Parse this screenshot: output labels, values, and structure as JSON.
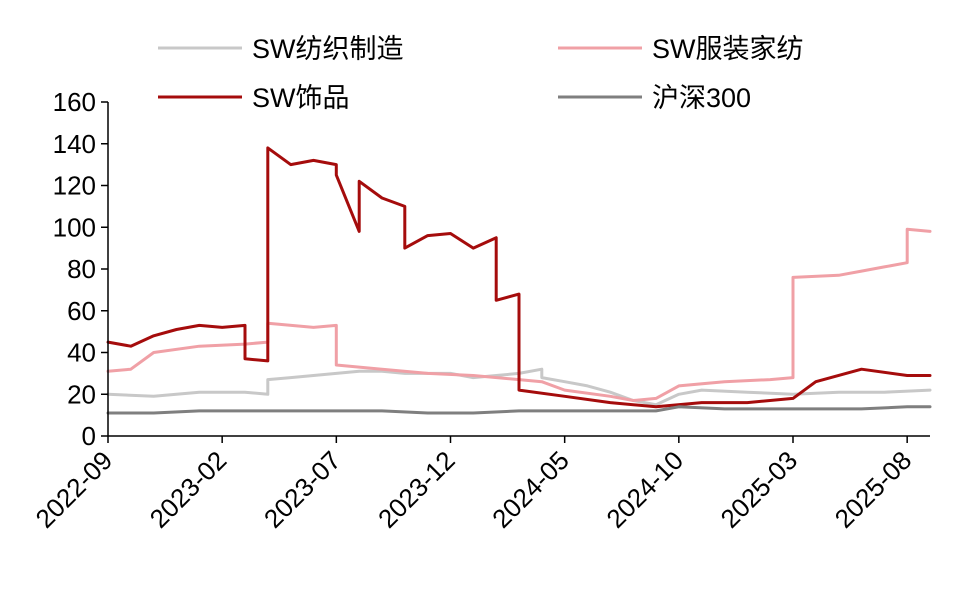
{
  "chart_data": {
    "type": "line",
    "title": "",
    "xlabel": "",
    "ylabel": "",
    "ylim": [
      0,
      160
    ],
    "yticks": [
      0,
      20,
      40,
      60,
      80,
      100,
      120,
      140,
      160
    ],
    "xlim": [
      "2022-09",
      "2025-09"
    ],
    "xticks": [
      "2022-09",
      "2023-02",
      "2023-07",
      "2023-12",
      "2024-05",
      "2024-10",
      "2025-03",
      "2025-08"
    ],
    "grid": false,
    "legend": "top",
    "series": [
      {
        "name": "SW纺织制造",
        "color": "#c8c8c8",
        "points": [
          [
            "2022-09",
            20
          ],
          [
            "2022-11",
            19
          ],
          [
            "2023-01",
            21
          ],
          [
            "2023-03",
            21
          ],
          [
            "2023-04",
            20
          ],
          [
            "2023-04",
            27
          ],
          [
            "2023-05",
            28
          ],
          [
            "2023-06",
            29
          ],
          [
            "2023-07",
            30
          ],
          [
            "2023-08",
            31
          ],
          [
            "2023-09",
            31
          ],
          [
            "2023-10",
            30
          ],
          [
            "2023-12",
            30
          ],
          [
            "2024-01",
            28
          ],
          [
            "2024-02",
            29
          ],
          [
            "2024-03",
            30
          ],
          [
            "2024-04",
            32
          ],
          [
            "2024-04",
            28
          ],
          [
            "2024-05",
            26
          ],
          [
            "2024-06",
            24
          ],
          [
            "2024-07",
            21
          ],
          [
            "2024-08",
            17
          ],
          [
            "2024-09",
            15
          ],
          [
            "2024-10",
            20
          ],
          [
            "2024-11",
            22
          ],
          [
            "2025-01",
            21
          ],
          [
            "2025-03",
            20
          ],
          [
            "2025-05",
            21
          ],
          [
            "2025-07",
            21
          ],
          [
            "2025-09",
            22
          ]
        ]
      },
      {
        "name": "SW服装家纺",
        "color": "#f0a0a6",
        "points": [
          [
            "2022-09",
            31
          ],
          [
            "2022-10",
            32
          ],
          [
            "2022-11",
            40
          ],
          [
            "2023-01",
            43
          ],
          [
            "2023-03",
            44
          ],
          [
            "2023-04",
            45
          ],
          [
            "2023-04",
            54
          ],
          [
            "2023-06",
            52
          ],
          [
            "2023-07",
            53
          ],
          [
            "2023-07",
            34
          ],
          [
            "2023-09",
            32
          ],
          [
            "2023-11",
            30
          ],
          [
            "2024-01",
            29
          ],
          [
            "2024-03",
            27
          ],
          [
            "2024-04",
            26
          ],
          [
            "2024-05",
            22
          ],
          [
            "2024-07",
            19
          ],
          [
            "2024-08",
            17
          ],
          [
            "2024-09",
            18
          ],
          [
            "2024-10",
            24
          ],
          [
            "2024-12",
            26
          ],
          [
            "2025-02",
            27
          ],
          [
            "2025-03",
            28
          ],
          [
            "2025-03",
            76
          ],
          [
            "2025-05",
            77
          ],
          [
            "2025-06",
            79
          ],
          [
            "2025-07",
            81
          ],
          [
            "2025-08",
            83
          ],
          [
            "2025-08",
            99
          ],
          [
            "2025-09",
            98
          ]
        ]
      },
      {
        "name": "SW饰品",
        "color": "#a50c0c",
        "points": [
          [
            "2022-09",
            45
          ],
          [
            "2022-10",
            43
          ],
          [
            "2022-11",
            48
          ],
          [
            "2022-12",
            51
          ],
          [
            "2023-01",
            53
          ],
          [
            "2023-02",
            52
          ],
          [
            "2023-03",
            53
          ],
          [
            "2023-03",
            37
          ],
          [
            "2023-04",
            36
          ],
          [
            "2023-04",
            138
          ],
          [
            "2023-05",
            130
          ],
          [
            "2023-06",
            132
          ],
          [
            "2023-07",
            130
          ],
          [
            "2023-07",
            125
          ],
          [
            "2023-08",
            98
          ],
          [
            "2023-08",
            122
          ],
          [
            "2023-09",
            114
          ],
          [
            "2023-10",
            110
          ],
          [
            "2023-10",
            90
          ],
          [
            "2023-11",
            96
          ],
          [
            "2023-12",
            97
          ],
          [
            "2024-01",
            90
          ],
          [
            "2024-02",
            95
          ],
          [
            "2024-02",
            65
          ],
          [
            "2024-03",
            68
          ],
          [
            "2024-03",
            22
          ],
          [
            "2024-05",
            19
          ],
          [
            "2024-07",
            16
          ],
          [
            "2024-09",
            14
          ],
          [
            "2024-11",
            16
          ],
          [
            "2025-01",
            16
          ],
          [
            "2025-03",
            18
          ],
          [
            "2025-04",
            26
          ],
          [
            "2025-06",
            32
          ],
          [
            "2025-08",
            29
          ],
          [
            "2025-09",
            29
          ]
        ]
      },
      {
        "name": "沪深300",
        "color": "#7f7f7f",
        "points": [
          [
            "2022-09",
            11
          ],
          [
            "2022-11",
            11
          ],
          [
            "2023-01",
            12
          ],
          [
            "2023-03",
            12
          ],
          [
            "2023-05",
            12
          ],
          [
            "2023-07",
            12
          ],
          [
            "2023-09",
            12
          ],
          [
            "2023-11",
            11
          ],
          [
            "2024-01",
            11
          ],
          [
            "2024-03",
            12
          ],
          [
            "2024-05",
            12
          ],
          [
            "2024-07",
            12
          ],
          [
            "2024-09",
            12
          ],
          [
            "2024-10",
            14
          ],
          [
            "2024-12",
            13
          ],
          [
            "2025-02",
            13
          ],
          [
            "2025-04",
            13
          ],
          [
            "2025-06",
            13
          ],
          [
            "2025-08",
            14
          ],
          [
            "2025-09",
            14
          ]
        ]
      }
    ]
  }
}
